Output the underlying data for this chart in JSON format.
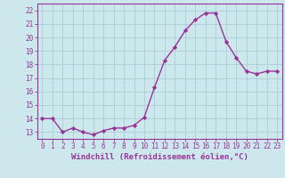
{
  "x": [
    0,
    1,
    2,
    3,
    4,
    5,
    6,
    7,
    8,
    9,
    10,
    11,
    12,
    13,
    14,
    15,
    16,
    17,
    18,
    19,
    20,
    21,
    22,
    23
  ],
  "y": [
    14.0,
    14.0,
    13.0,
    13.3,
    13.0,
    12.8,
    13.1,
    13.3,
    13.3,
    13.5,
    14.1,
    16.3,
    18.3,
    19.3,
    20.5,
    21.3,
    21.8,
    21.8,
    19.7,
    18.5,
    17.5,
    17.3,
    17.5,
    17.5
  ],
  "line_color": "#993399",
  "marker": "D",
  "marker_size": 2.2,
  "background_color": "#cde8ec",
  "grid_color": "#aacdd3",
  "xlabel": "Windchill (Refroidissement éolien,°C)",
  "ylim": [
    12.5,
    22.5
  ],
  "xlim": [
    -0.5,
    23.5
  ],
  "yticks": [
    13,
    14,
    15,
    16,
    17,
    18,
    19,
    20,
    21,
    22
  ],
  "xticks": [
    0,
    1,
    2,
    3,
    4,
    5,
    6,
    7,
    8,
    9,
    10,
    11,
    12,
    13,
    14,
    15,
    16,
    17,
    18,
    19,
    20,
    21,
    22,
    23
  ],
  "tick_label_color": "#993399",
  "tick_label_fontsize": 5.5,
  "xlabel_fontsize": 6.5,
  "line_width": 1.0,
  "spine_color": "#993399"
}
